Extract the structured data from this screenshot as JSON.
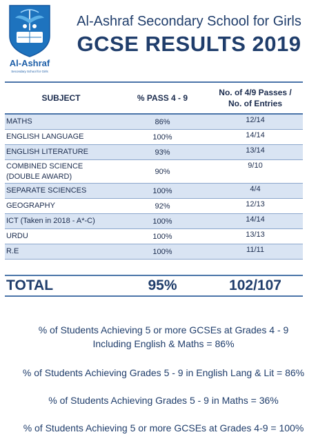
{
  "header": {
    "logo_name": "Al-Ashraf",
    "logo_tagline": "Secondary School for Girls",
    "school_name": "Al-Ashraf Secondary School for Girls",
    "title": "GCSE RESULTS 2019"
  },
  "table": {
    "columns": [
      "SUBJECT",
      "% PASS 4 - 9",
      "No. of 4/9 Passes /",
      "No. of Entries"
    ],
    "rows": [
      {
        "subject": "MATHS",
        "pass": "86%",
        "ratio": "12/14"
      },
      {
        "subject": "ENGLISH LANGUAGE",
        "pass": "100%",
        "ratio": "14/14"
      },
      {
        "subject": "ENGLISH LITERATURE",
        "pass": "93%",
        "ratio": "13/14"
      },
      {
        "subject": "COMBINED SCIENCE",
        "subject2": "(DOUBLE AWARD)",
        "pass": "90%",
        "ratio": "9/10"
      },
      {
        "subject": "SEPARATE SCIENCES",
        "pass": "100%",
        "ratio": "4/4"
      },
      {
        "subject": "GEOGRAPHY",
        "pass": "92%",
        "ratio": "12/13"
      },
      {
        "subject": "ICT (Taken in 2018 - A*-C)",
        "pass": "100%",
        "ratio": "14/14"
      },
      {
        "subject": "URDU",
        "pass": "100%",
        "ratio": "13/13"
      },
      {
        "subject": "R.E",
        "pass": "100%",
        "ratio": "11/11"
      }
    ],
    "total": {
      "label": "TOTAL",
      "pass": "95%",
      "ratio": "102/107"
    }
  },
  "stats": {
    "s1_line1": "% of Students Achieving 5 or more GCSEs at Grades 4 - 9",
    "s1_line2": "Including English & Maths = 86%",
    "s2": "% of Students Achieving Grades 5 - 9 in English Lang & Lit = 86%",
    "s3": "% of Students Achieving Grades 5 - 9 in Maths = 36%",
    "s4": "% of Students Achieving 5 or more GCSEs at Grades 4-9 = 100%"
  }
}
